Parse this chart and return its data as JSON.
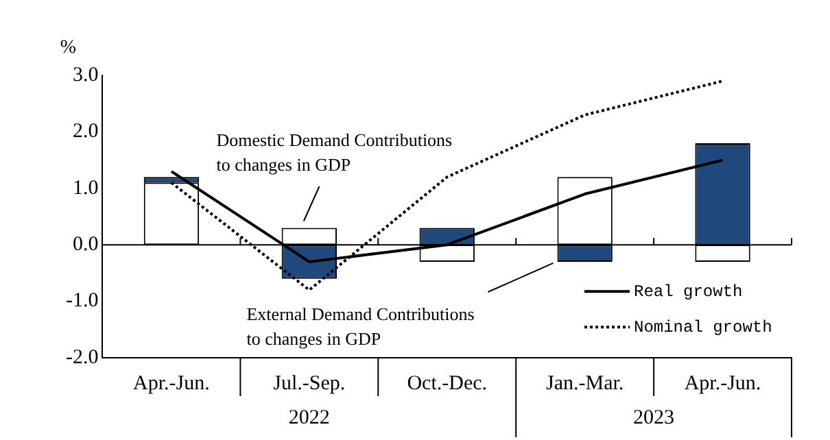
{
  "chart_data": {
    "type": "bar",
    "stacked": true,
    "ylabel": "%",
    "categories": [
      "Apr.-Jun.",
      "Jul.-Sep.",
      "Oct.-Dec.",
      "Jan.-Mar.",
      "Apr.-Jun."
    ],
    "series": [
      {
        "name": "Domestic Demand Contributions to changes in GDP",
        "color": "#ffffff",
        "values": [
          1.1,
          0.3,
          -0.3,
          1.2,
          -0.3
        ]
      },
      {
        "name": "External Demand Contributions to changes in GDP",
        "color": "#1f497d",
        "values": [
          0.1,
          -0.6,
          0.3,
          -0.3,
          1.8
        ]
      },
      {
        "name": "Real growth",
        "type": "line",
        "color": "#000000",
        "line_style": "solid",
        "values": [
          1.3,
          -0.3,
          0.0,
          0.9,
          1.5
        ]
      },
      {
        "name": "Nominal growth",
        "type": "line",
        "color": "#000000",
        "line_style": "dotted",
        "values": [
          1.1,
          -0.8,
          1.2,
          2.3,
          2.9
        ]
      }
    ],
    "ylim": [
      -2,
      3
    ],
    "yticks": [
      {
        "value": -2,
        "label": "-2.0"
      },
      {
        "value": -1,
        "label": "-1.0"
      },
      {
        "value": 0,
        "label": "0.0"
      },
      {
        "value": 1,
        "label": "1.0"
      },
      {
        "value": 2,
        "label": "2.0"
      },
      {
        "value": 3,
        "label": "3.0"
      }
    ],
    "annotations": [
      "2022",
      "2023"
    ],
    "ref_lines": [
      {
        "axis": "y",
        "value": 0,
        "color": "#000000"
      }
    ],
    "legend": "bottom right",
    "marker": "none",
    "grid": false
  }
}
